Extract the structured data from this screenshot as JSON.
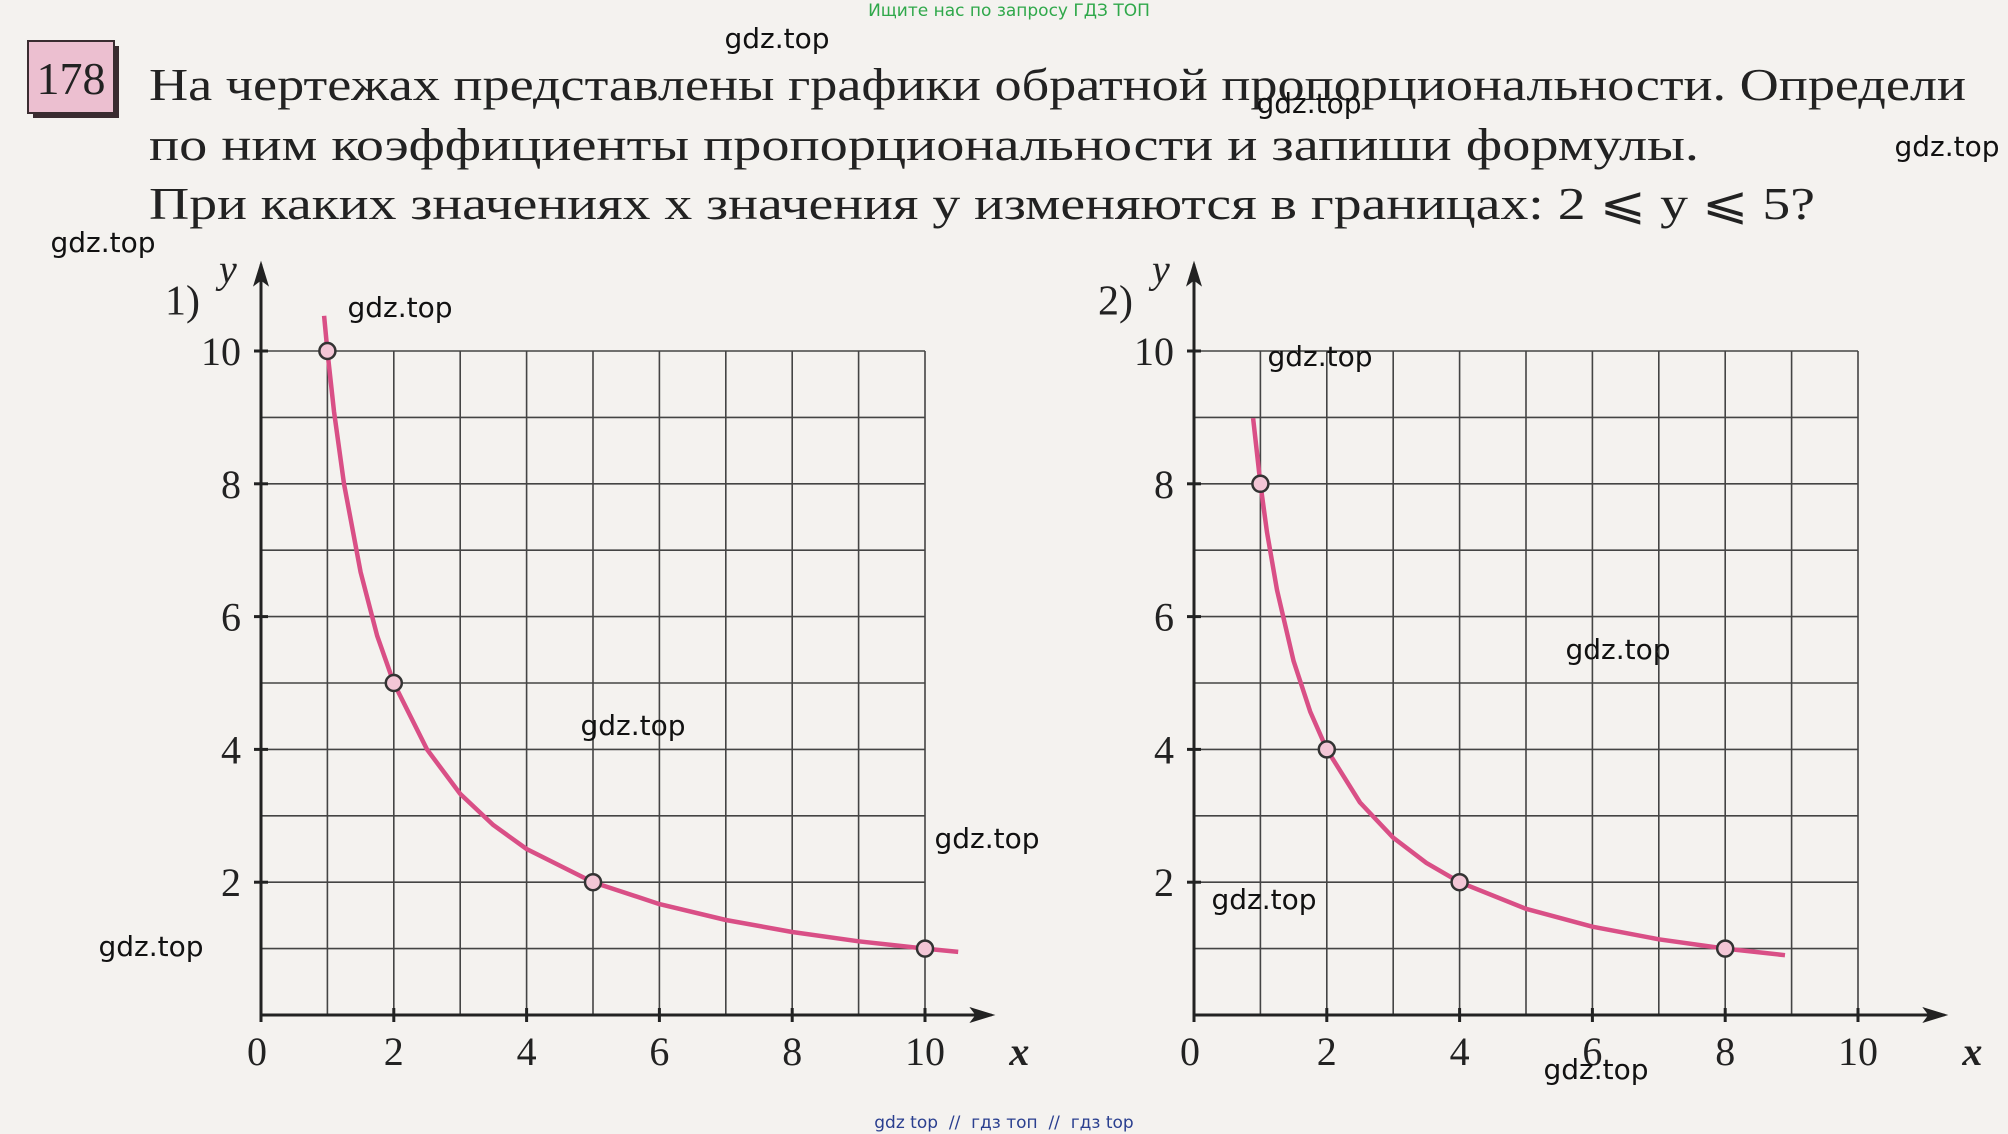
{
  "banner": "Ищите нас по запросу ГДЗ ТОП",
  "problem": {
    "number": "178",
    "lines": [
      "На чертежах представлены графики обратной пропорциональности. Определи",
      "по ним коэффициенты пропорциональности и запиши формулы.",
      "При каких значениях x значения y изменяются в границах: 2 ⩽ y ⩽ 5?"
    ]
  },
  "watermarks": [
    "gdz.top",
    "gdz.top",
    "gdz.top",
    "gdz.top",
    "gdz.top",
    "gdz.top",
    "gdz.top",
    "gdz.top",
    "gdz.top",
    "gdz.top",
    "gdz.top",
    "gdz.top"
  ],
  "footer": "gdz top  //  гдз топ  //  гдз top",
  "chart_data": [
    {
      "type": "line",
      "title": "1)",
      "x_label": "x",
      "y_label": "y",
      "xlim": [
        0,
        11
      ],
      "ylim": [
        0,
        11.3
      ],
      "xticks": [
        0,
        2,
        4,
        6,
        8,
        10
      ],
      "yticks": [
        2,
        4,
        6,
        8,
        10
      ],
      "grid_x": [
        1,
        2,
        3,
        4,
        5,
        6,
        7,
        8,
        9,
        10
      ],
      "grid_y": [
        1,
        2,
        3,
        4,
        5,
        6,
        7,
        8,
        9,
        10
      ],
      "series": [
        {
          "color": "#d94f86",
          "markers": false,
          "x": [
            0.95,
            1,
            1.1,
            1.25,
            1.5,
            1.75,
            2,
            2.5,
            3,
            3.5,
            4,
            5,
            6,
            7,
            8,
            9,
            10,
            10.5
          ],
          "values": [
            10.53,
            10,
            9.09,
            8,
            6.67,
            5.71,
            5,
            4,
            3.33,
            2.86,
            2.5,
            2,
            1.67,
            1.43,
            1.25,
            1.11,
            1,
            0.95
          ]
        },
        {
          "color": "#f3c6d6",
          "markers": true,
          "x": [
            1,
            2,
            5,
            10
          ],
          "values": [
            10,
            5,
            2,
            1
          ]
        }
      ]
    },
    {
      "type": "line",
      "title": "2)",
      "x_label": "x",
      "y_label": "y",
      "xlim": [
        0,
        11.3
      ],
      "ylim": [
        0,
        11.3
      ],
      "xticks": [
        0,
        2,
        4,
        6,
        8,
        10
      ],
      "yticks": [
        2,
        4,
        6,
        8,
        10
      ],
      "grid_x": [
        1,
        2,
        3,
        4,
        5,
        6,
        7,
        8,
        9,
        10
      ],
      "grid_y": [
        1,
        2,
        3,
        4,
        5,
        6,
        7,
        8,
        9,
        10
      ],
      "series": [
        {
          "color": "#d94f86",
          "markers": false,
          "x": [
            0.89,
            1,
            1.1,
            1.25,
            1.5,
            1.75,
            2,
            2.5,
            3,
            3.5,
            4,
            5,
            6,
            7,
            8,
            8.9
          ],
          "values": [
            8.99,
            8,
            7.27,
            6.4,
            5.33,
            4.57,
            4,
            3.2,
            2.67,
            2.29,
            2,
            1.6,
            1.33,
            1.14,
            1,
            0.9
          ]
        },
        {
          "color": "#f3c6d6",
          "markers": true,
          "x": [
            1,
            2,
            4,
            8
          ],
          "values": [
            8,
            4,
            2,
            1
          ]
        }
      ]
    }
  ]
}
